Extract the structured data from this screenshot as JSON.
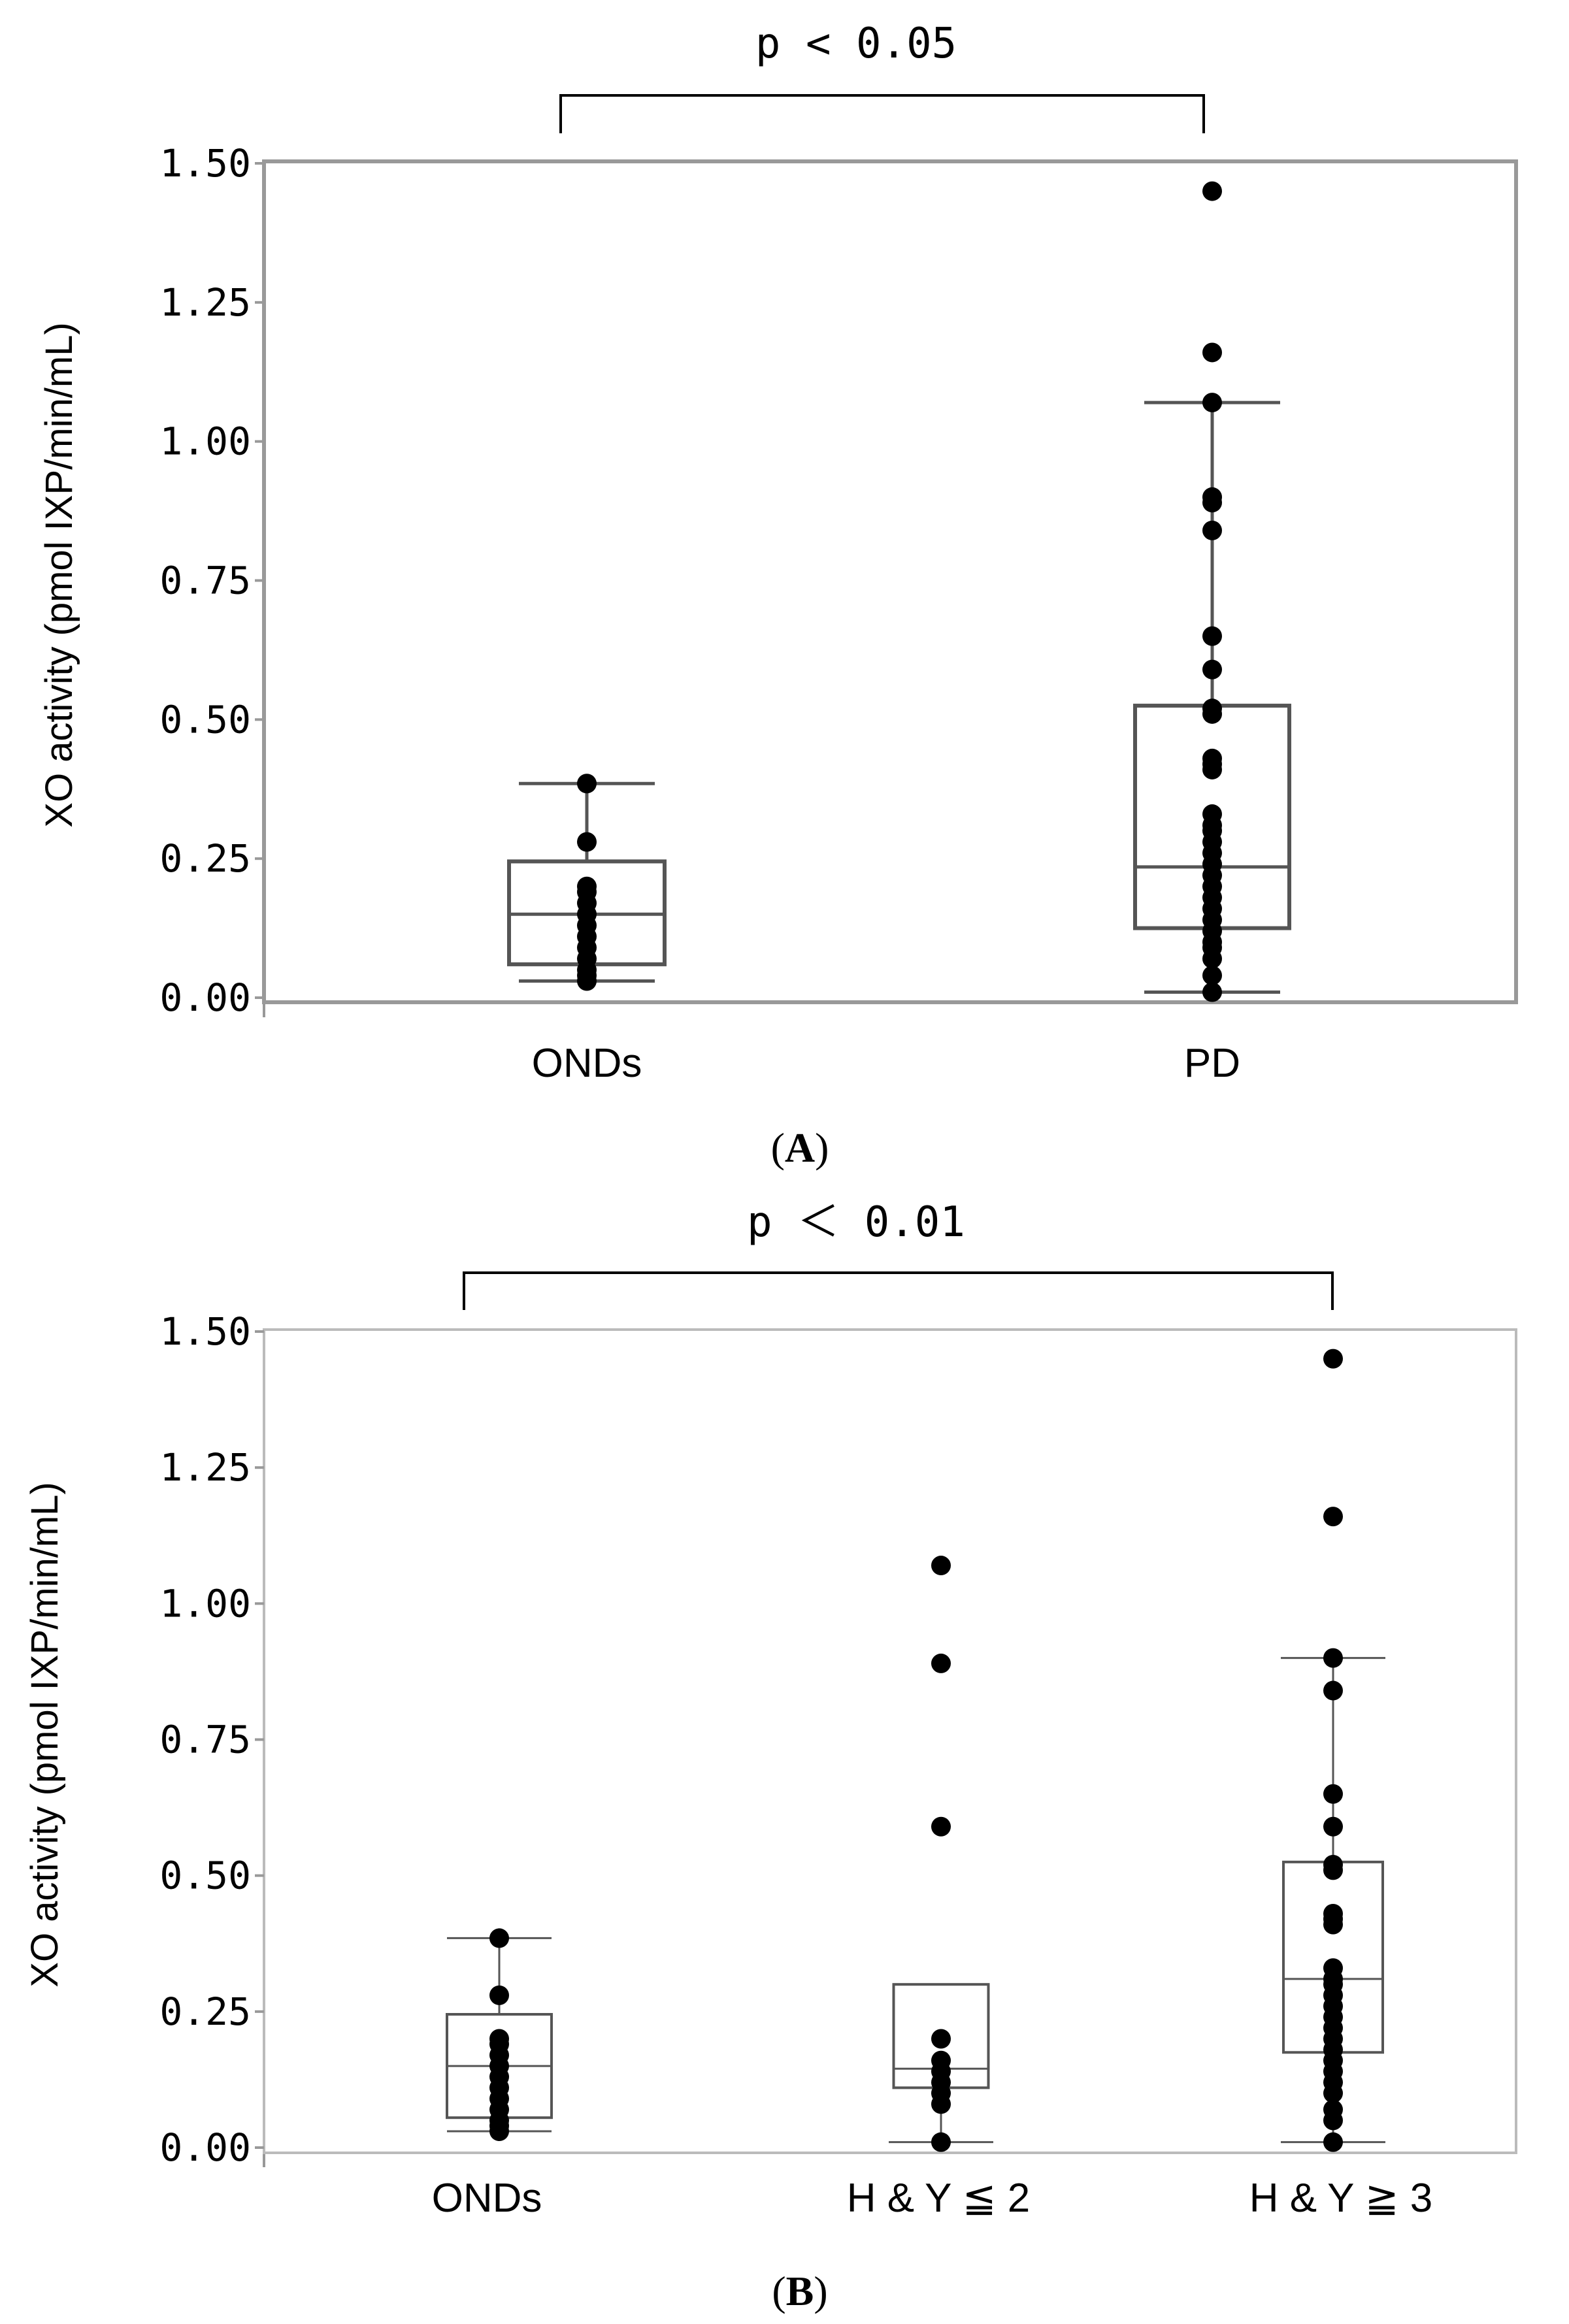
{
  "chart_data": [
    {
      "type": "box",
      "panel_label": "A",
      "ylabel": "XO activity (pmol IXP/min/mL)",
      "ylim": [
        0,
        1.5
      ],
      "yticks": [
        "0.00",
        "0.25",
        "0.50",
        "0.75",
        "1.00",
        "1.25",
        "1.50"
      ],
      "categories": [
        "ONDs",
        "PD"
      ],
      "significance": {
        "text": "p < 0.05",
        "from": "ONDs",
        "to": "PD"
      },
      "series": [
        {
          "name": "ONDs",
          "whisker_low": 0.03,
          "q1": 0.06,
          "median": 0.15,
          "q3": 0.245,
          "whisker_high": 0.385,
          "points": [
            0.385,
            0.28,
            0.2,
            0.19,
            0.17,
            0.15,
            0.13,
            0.11,
            0.09,
            0.07,
            0.05,
            0.04,
            0.03
          ]
        },
        {
          "name": "PD",
          "whisker_low": 0.01,
          "q1": 0.125,
          "median": 0.235,
          "q3": 0.525,
          "whisker_high": 1.07,
          "points": [
            1.45,
            1.16,
            1.07,
            0.9,
            0.89,
            0.84,
            0.65,
            0.59,
            0.52,
            0.51,
            0.43,
            0.42,
            0.41,
            0.33,
            0.31,
            0.3,
            0.28,
            0.26,
            0.24,
            0.22,
            0.2,
            0.18,
            0.16,
            0.14,
            0.12,
            0.1,
            0.09,
            0.07,
            0.04,
            0.01
          ]
        }
      ]
    },
    {
      "type": "box",
      "panel_label": "B",
      "ylabel": "XO activity (pmol IXP/min/mL)",
      "ylim": [
        0,
        1.5
      ],
      "yticks": [
        "0.00",
        "0.25",
        "0.50",
        "0.75",
        "1.00",
        "1.25",
        "1.50"
      ],
      "categories": [
        "ONDs",
        "H & Y ≦ 2",
        "H & Y ≧ 3"
      ],
      "significance": {
        "text": "p ＜ 0.01",
        "from": "ONDs",
        "to": "H & Y ≧ 3"
      },
      "series": [
        {
          "name": "ONDs",
          "whisker_low": 0.03,
          "q1": 0.055,
          "median": 0.15,
          "q3": 0.245,
          "whisker_high": 0.385,
          "points": [
            0.385,
            0.28,
            0.2,
            0.19,
            0.17,
            0.15,
            0.13,
            0.11,
            0.09,
            0.07,
            0.05,
            0.04,
            0.03
          ]
        },
        {
          "name": "H & Y ≦ 2",
          "whisker_low": 0.01,
          "q1": 0.11,
          "median": 0.145,
          "q3": 0.3,
          "whisker_high": 0.3,
          "points": [
            1.07,
            0.89,
            0.59,
            0.2,
            0.16,
            0.14,
            0.12,
            0.1,
            0.08,
            0.01
          ]
        },
        {
          "name": "H & Y ≧ 3",
          "whisker_low": 0.01,
          "q1": 0.175,
          "median": 0.31,
          "q3": 0.525,
          "whisker_high": 0.9,
          "points": [
            1.45,
            1.16,
            0.9,
            0.84,
            0.65,
            0.59,
            0.52,
            0.51,
            0.43,
            0.42,
            0.41,
            0.33,
            0.31,
            0.3,
            0.28,
            0.26,
            0.24,
            0.22,
            0.2,
            0.18,
            0.16,
            0.14,
            0.12,
            0.1,
            0.07,
            0.05,
            0.01
          ]
        }
      ]
    }
  ]
}
